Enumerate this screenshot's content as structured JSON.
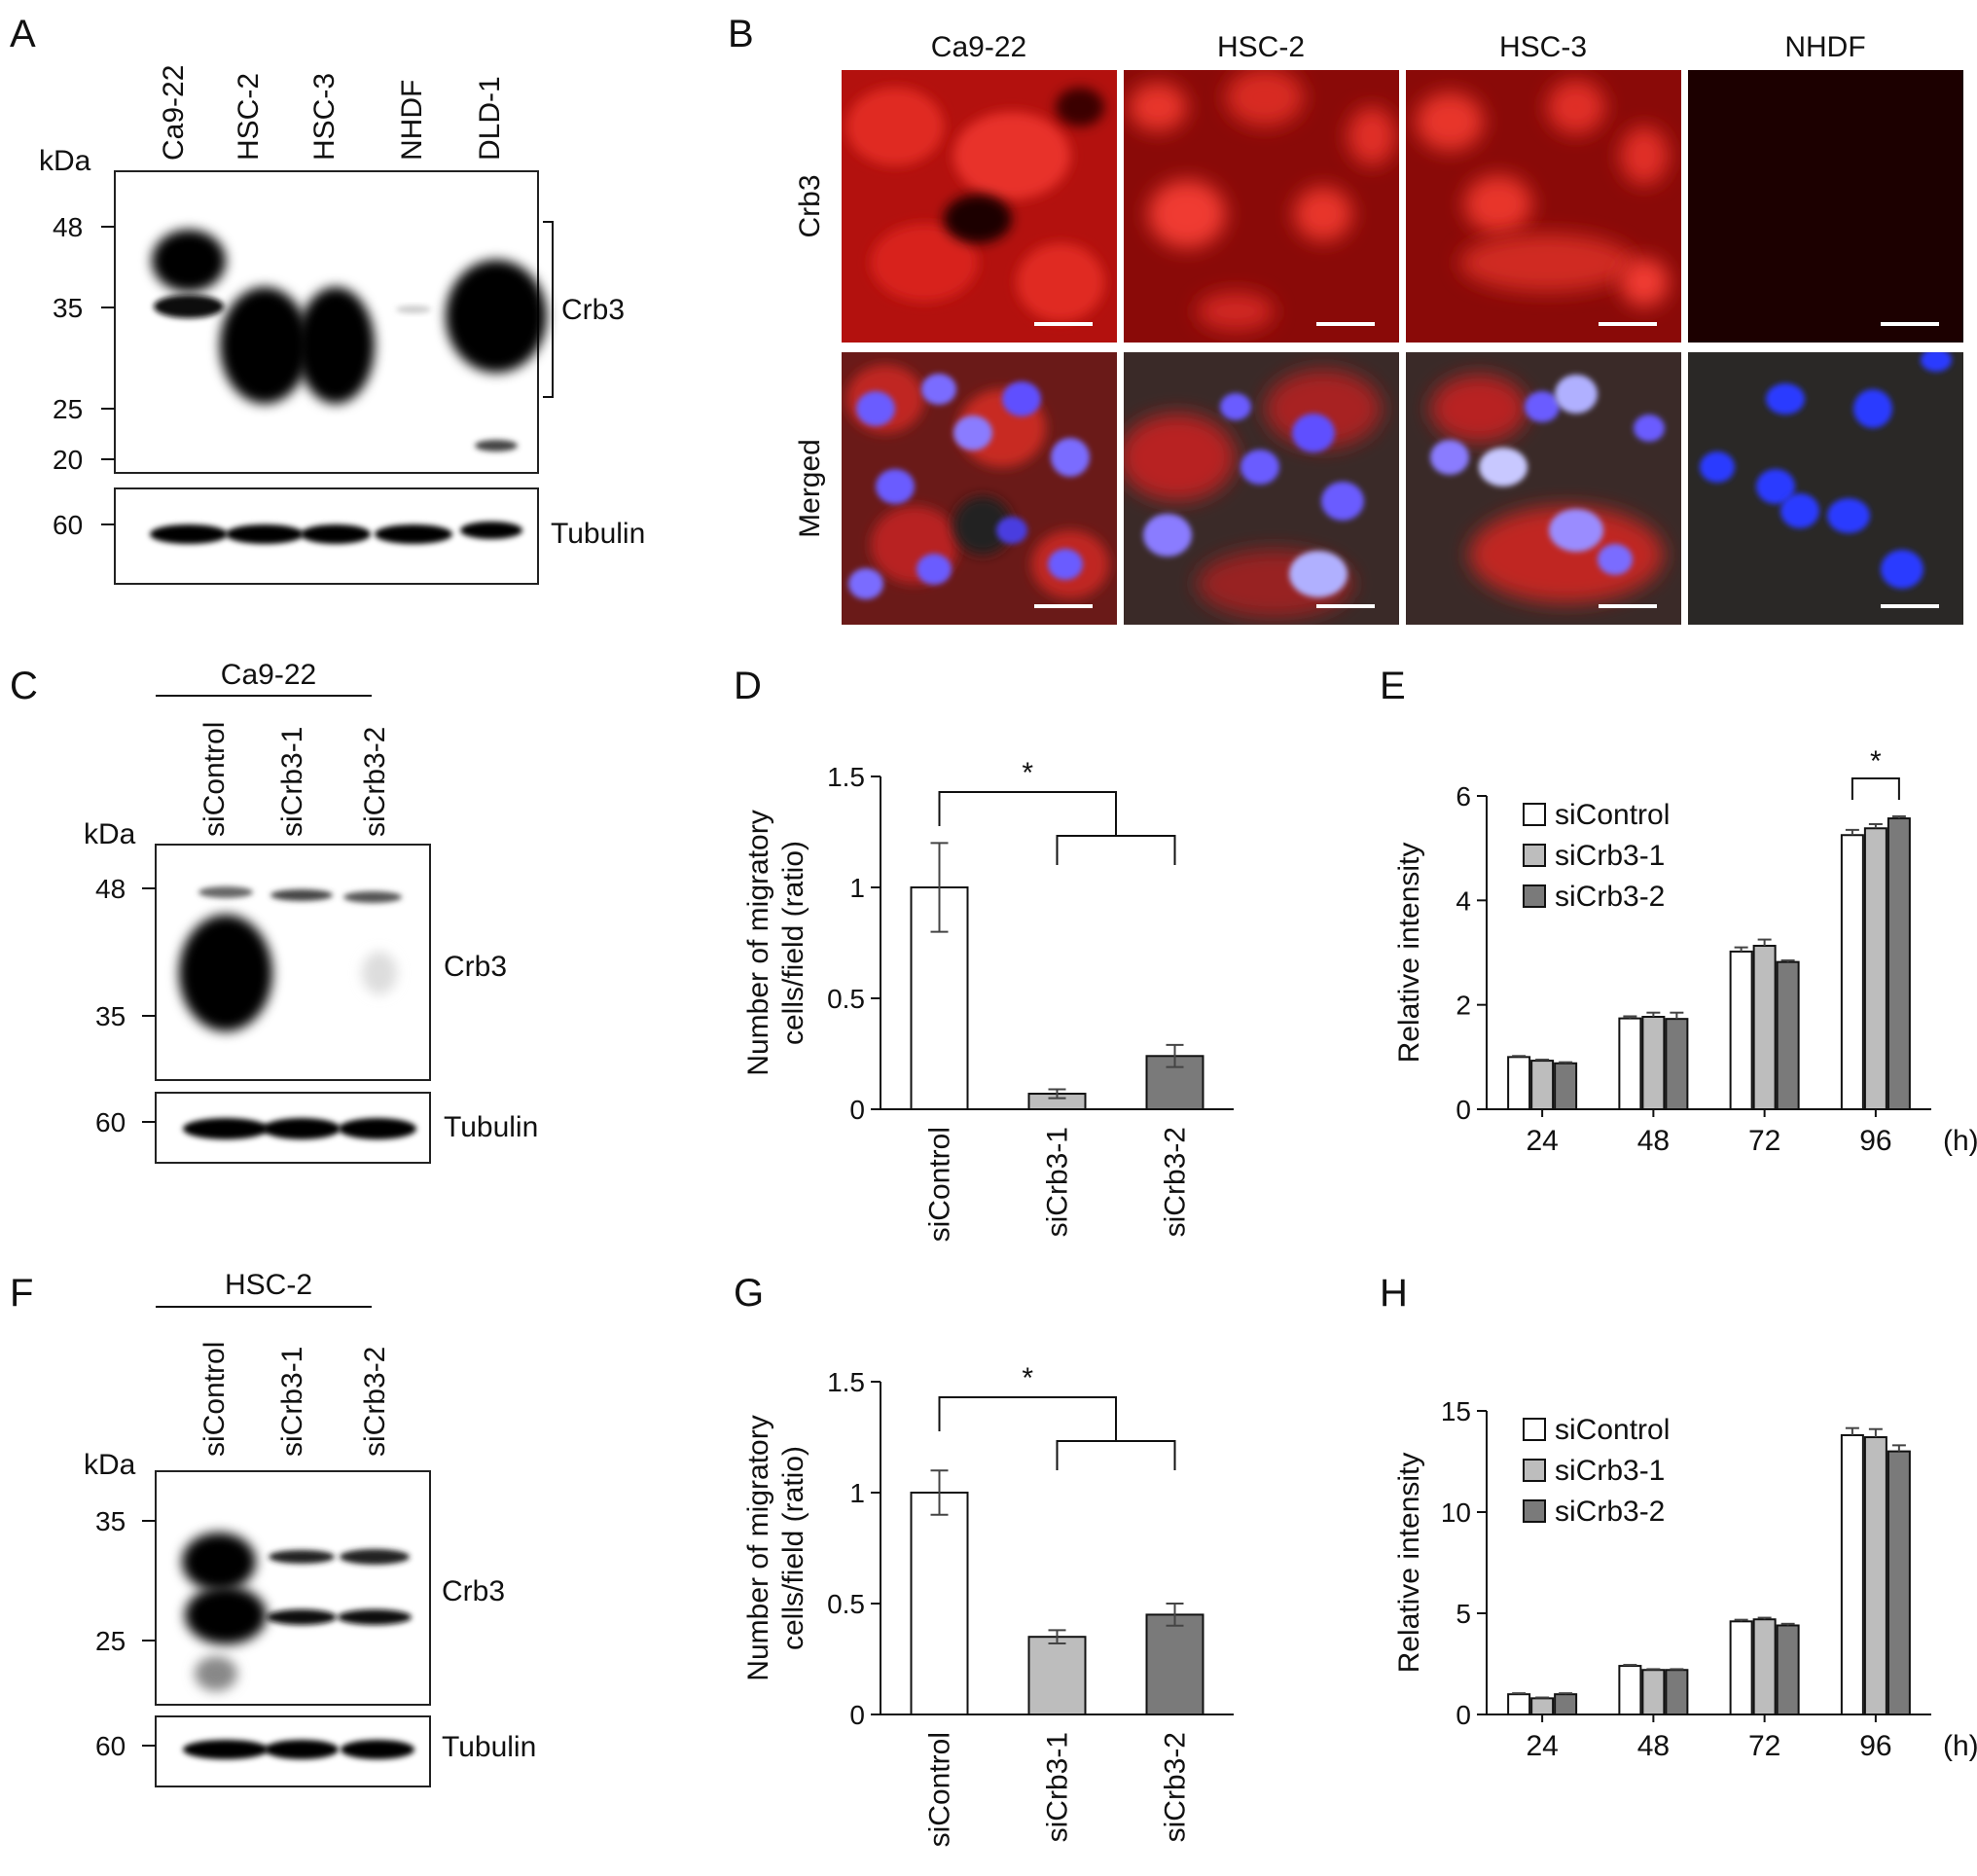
{
  "panels": {
    "A": {
      "letter": "A",
      "kda": "kDa",
      "lanes": [
        "Ca9-22",
        "HSC-2",
        "HSC-3",
        "NHDF",
        "DLD-1"
      ],
      "markers": [
        "48",
        "35",
        "25",
        "20"
      ],
      "tubulin_marker": "60",
      "band_label": "Crb3",
      "loading_label": "Tubulin"
    },
    "B": {
      "letter": "B",
      "columns": [
        "Ca9-22",
        "HSC-2",
        "HSC-3",
        "NHDF"
      ],
      "rows": [
        "Crb3",
        "Merged"
      ]
    },
    "C": {
      "letter": "C",
      "cell_line": "Ca9-22",
      "kda": "kDa",
      "lanes": [
        "siControl",
        "siCrb3-1",
        "siCrb3-2"
      ],
      "markers": [
        "48",
        "35"
      ],
      "tubulin_marker": "60",
      "band_label": "Crb3",
      "loading_label": "Tubulin"
    },
    "D": {
      "letter": "D"
    },
    "E": {
      "letter": "E"
    },
    "F": {
      "letter": "F",
      "cell_line": "HSC-2",
      "kda": "kDa",
      "lanes": [
        "siControl",
        "siCrb3-1",
        "siCrb3-2"
      ],
      "markers": [
        "35",
        "25"
      ],
      "tubulin_marker": "60",
      "band_label": "Crb3",
      "loading_label": "Tubulin"
    },
    "G": {
      "letter": "G"
    },
    "H": {
      "letter": "H"
    }
  },
  "chart_data": [
    {
      "panel": "D",
      "type": "bar",
      "categories": [
        "siControl",
        "siCrb3-1",
        "siCrb3-2"
      ],
      "values": [
        1.0,
        0.07,
        0.24
      ],
      "errors": [
        0.2,
        0.02,
        0.05
      ],
      "colors": [
        "#ffffff",
        "#bdbdbd",
        "#7a7a7a"
      ],
      "ylabel": "Number of migratory cells/field (ratio)",
      "ylim": [
        0,
        1.5
      ],
      "yticks": [
        "0",
        "0.5",
        "1",
        "1.5"
      ],
      "significance": "*"
    },
    {
      "panel": "E",
      "type": "bar",
      "categories": [
        "24",
        "48",
        "72",
        "96"
      ],
      "xunit": "(h)",
      "series": [
        {
          "name": "siControl",
          "values": [
            1.0,
            1.74,
            3.02,
            5.25
          ],
          "errors": [
            0.02,
            0.04,
            0.08,
            0.1
          ],
          "color": "#ffffff"
        },
        {
          "name": "siCrb3-1",
          "values": [
            0.93,
            1.77,
            3.13,
            5.38
          ],
          "errors": [
            0.02,
            0.08,
            0.12,
            0.08
          ],
          "color": "#bdbdbd"
        },
        {
          "name": "siCrb3-2",
          "values": [
            0.88,
            1.73,
            2.82,
            5.57
          ],
          "errors": [
            0.02,
            0.12,
            0.03,
            0.04
          ],
          "color": "#7a7a7a"
        }
      ],
      "ylabel": "Relative intensity",
      "ylim": [
        0,
        6
      ],
      "yticks": [
        "0",
        "2",
        "4",
        "6"
      ],
      "significance": "*",
      "legend": "top-left"
    },
    {
      "panel": "G",
      "type": "bar",
      "categories": [
        "siControl",
        "siCrb3-1",
        "siCrb3-2"
      ],
      "values": [
        1.0,
        0.35,
        0.45
      ],
      "errors": [
        0.1,
        0.03,
        0.05
      ],
      "colors": [
        "#ffffff",
        "#bdbdbd",
        "#7a7a7a"
      ],
      "ylabel": "Number of migratory cells/field (ratio)",
      "ylim": [
        0,
        1.5
      ],
      "yticks": [
        "0",
        "0.5",
        "1",
        "1.5"
      ],
      "significance": "*"
    },
    {
      "panel": "H",
      "type": "bar",
      "categories": [
        "24",
        "48",
        "72",
        "96"
      ],
      "xunit": "(h)",
      "series": [
        {
          "name": "siControl",
          "values": [
            1.0,
            2.4,
            4.6,
            13.8
          ],
          "errors": [
            0.05,
            0.05,
            0.08,
            0.35
          ],
          "color": "#ffffff"
        },
        {
          "name": "siCrb3-1",
          "values": [
            0.8,
            2.2,
            4.7,
            13.7
          ],
          "errors": [
            0.04,
            0.04,
            0.08,
            0.4
          ],
          "color": "#bdbdbd"
        },
        {
          "name": "siCrb3-2",
          "values": [
            1.0,
            2.2,
            4.4,
            13.0
          ],
          "errors": [
            0.05,
            0.04,
            0.08,
            0.3
          ],
          "color": "#7a7a7a"
        }
      ],
      "ylabel": "Relative intensity",
      "ylim": [
        0,
        15
      ],
      "yticks": [
        "0",
        "5",
        "10",
        "15"
      ],
      "legend": "top-left"
    }
  ]
}
